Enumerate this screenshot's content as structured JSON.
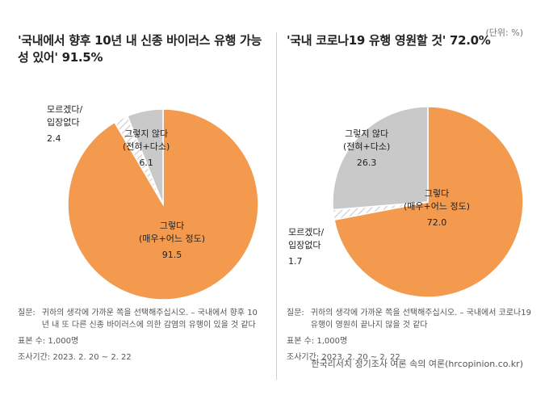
{
  "unit": "(단위: %)",
  "charts": [
    {
      "title": "'국내에서 향후 10년 내 신종 바이러스 유행 가능성 있어' 91.5%",
      "note_q_label": "질문:",
      "note_q_text": "귀하의 생각에 가까운 쪽을 선택해주십시오. – 국내에서 향후 10년 내 또 다른 신종 바이러스에 의한 감염의 유행이 있을 것 같다",
      "sample": "표본 수: 1,000명",
      "period": "조사기간: 2023. 2. 20 ~ 2. 22",
      "labels": [
        {
          "line1": "그렇다",
          "line2": "(매우+어느 정도)",
          "value": "91.5"
        },
        {
          "line1": "그렇지 않다",
          "line2": "(전혀+다소)",
          "value": "6.1"
        },
        {
          "line1": "모르겠다/",
          "line2": "입장없다",
          "value": "2.4"
        }
      ]
    },
    {
      "title": "'국내 코로나19 유행 영원할 것' 72.0%",
      "note_q_label": "질문:",
      "note_q_text": "귀하의 생각에 가까운 쪽을 선택해주십시오. – 국내에서 코로나19 유행이 영원히 끝나지 않을 것 같다",
      "sample": "표본 수: 1,000명",
      "period": "조사기간: 2023. 2. 20 ~ 2. 22",
      "labels": [
        {
          "line1": "그렇다",
          "line2": "(매우+어느 정도)",
          "value": "72.0"
        },
        {
          "line1": "그렇지 않다",
          "line2": "(전혀+다소)",
          "value": "26.3"
        },
        {
          "line1": "모르겠다/",
          "line2": "입장없다",
          "value": "1.7"
        }
      ]
    }
  ],
  "footer": "한국리서치 정기조사 여론 속의 여론(hrcopinion.co.kr)",
  "colors": {
    "yes": "#F39A4F",
    "no": "#C9C9C9",
    "dontknow_hatch": "#D8D8D8"
  },
  "chart_data": [
    {
      "type": "pie",
      "title": "'국내에서 향후 10년 내 신종 바이러스 유행 가능성 있어' 91.5%",
      "categories": [
        "그렇다 (매우+어느 정도)",
        "그렇지 않다 (전혀+다소)",
        "모르겠다/입장없다"
      ],
      "values": [
        91.5,
        6.1,
        2.4
      ]
    },
    {
      "type": "pie",
      "title": "'국내 코로나19 유행 영원할 것' 72.0%",
      "categories": [
        "그렇다 (매우+어느 정도)",
        "그렇지 않다 (전혀+다소)",
        "모르겠다/입장없다"
      ],
      "values": [
        72.0,
        26.3,
        1.7
      ]
    }
  ]
}
